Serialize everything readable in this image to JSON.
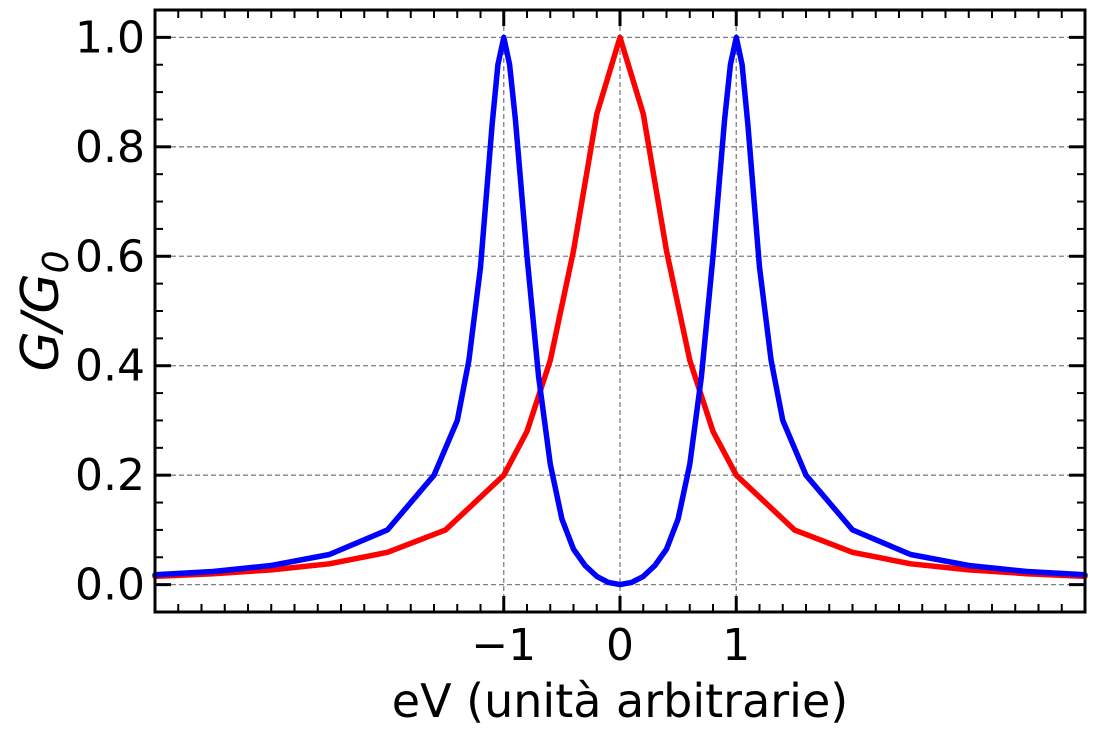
{
  "chart_data": {
    "type": "line",
    "xlabel": "eV (unità arbitrarie)",
    "ylabel": "G/G",
    "ylabel_subscript": "0",
    "xlim": [
      -4.0,
      4.0
    ],
    "ylim": [
      -0.05,
      1.05
    ],
    "xticks": [
      -1,
      0,
      1
    ],
    "xtick_labels": [
      "−1",
      "0",
      "1"
    ],
    "yticks": [
      0.0,
      0.2,
      0.4,
      0.6,
      0.8,
      1.0
    ],
    "ytick_labels": [
      "0.0",
      "0.2",
      "0.4",
      "0.6",
      "0.8",
      "1.0"
    ],
    "grid": true,
    "legend": false,
    "series": [
      {
        "color": "#ff0000",
        "x": [
          -4.0,
          -3.5,
          -3.0,
          -2.5,
          -2.0,
          -1.5,
          -1.0,
          -0.8,
          -0.6,
          -0.4,
          -0.2,
          0.0,
          0.2,
          0.4,
          0.6,
          0.8,
          1.0,
          1.5,
          2.0,
          2.5,
          3.0,
          3.5,
          4.0
        ],
        "y": [
          0.015,
          0.02,
          0.027,
          0.038,
          0.059,
          0.1,
          0.2,
          0.28,
          0.41,
          0.61,
          0.86,
          1.0,
          0.86,
          0.61,
          0.41,
          0.28,
          0.2,
          0.1,
          0.059,
          0.038,
          0.027,
          0.02,
          0.015
        ]
      },
      {
        "color": "#0000ff",
        "x": [
          -4.0,
          -3.5,
          -3.0,
          -2.5,
          -2.0,
          -1.6,
          -1.4,
          -1.3,
          -1.2,
          -1.1,
          -1.05,
          -1.0,
          -0.95,
          -0.9,
          -0.8,
          -0.7,
          -0.6,
          -0.5,
          -0.4,
          -0.3,
          -0.2,
          -0.1,
          0.0,
          0.1,
          0.2,
          0.3,
          0.4,
          0.5,
          0.6,
          0.7,
          0.8,
          0.9,
          0.95,
          1.0,
          1.05,
          1.1,
          1.2,
          1.3,
          1.4,
          1.6,
          2.0,
          2.5,
          3.0,
          3.5,
          4.0
        ],
        "y": [
          0.018,
          0.024,
          0.035,
          0.055,
          0.1,
          0.2,
          0.3,
          0.41,
          0.58,
          0.84,
          0.95,
          1.0,
          0.95,
          0.85,
          0.6,
          0.38,
          0.22,
          0.12,
          0.065,
          0.035,
          0.015,
          0.004,
          0.0,
          0.004,
          0.015,
          0.035,
          0.065,
          0.12,
          0.22,
          0.38,
          0.6,
          0.85,
          0.95,
          1.0,
          0.95,
          0.84,
          0.58,
          0.41,
          0.3,
          0.2,
          0.1,
          0.055,
          0.035,
          0.024,
          0.018
        ]
      }
    ]
  }
}
